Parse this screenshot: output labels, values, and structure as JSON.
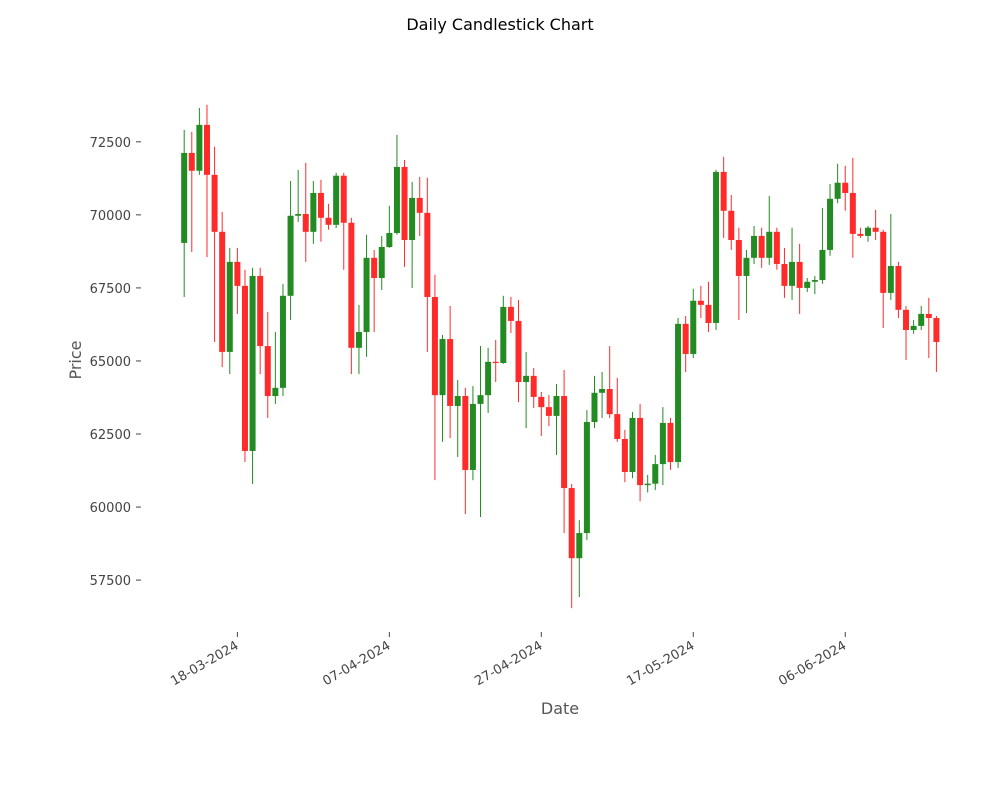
{
  "chart_data": {
    "type": "candlestick",
    "title": "Daily Candlestick Chart",
    "x_label": "Date",
    "y_label": "Price",
    "x": [
      "11-03-2024",
      "12-03-2024",
      "13-03-2024",
      "14-03-2024",
      "15-03-2024",
      "16-03-2024",
      "17-03-2024",
      "18-03-2024",
      "19-03-2024",
      "20-03-2024",
      "21-03-2024",
      "22-03-2024",
      "23-03-2024",
      "24-03-2024",
      "25-03-2024",
      "26-03-2024",
      "27-03-2024",
      "28-03-2024",
      "29-03-2024",
      "30-03-2024",
      "31-03-2024",
      "01-04-2024",
      "02-04-2024",
      "03-04-2024",
      "04-04-2024",
      "05-04-2024",
      "06-04-2024",
      "07-04-2024",
      "08-04-2024",
      "09-04-2024",
      "10-04-2024",
      "11-04-2024",
      "12-04-2024",
      "13-04-2024",
      "14-04-2024",
      "15-04-2024",
      "16-04-2024",
      "17-04-2024",
      "18-04-2024",
      "19-04-2024",
      "20-04-2024",
      "21-04-2024",
      "22-04-2024",
      "23-04-2024",
      "24-04-2024",
      "25-04-2024",
      "26-04-2024",
      "27-04-2024",
      "28-04-2024",
      "29-04-2024",
      "30-04-2024",
      "01-05-2024",
      "02-05-2024",
      "03-05-2024",
      "04-05-2024",
      "05-05-2024",
      "06-05-2024",
      "07-05-2024",
      "08-05-2024",
      "09-05-2024",
      "10-05-2024",
      "11-05-2024",
      "12-05-2024",
      "13-05-2024",
      "14-05-2024",
      "15-05-2024",
      "16-05-2024",
      "17-05-2024",
      "18-05-2024",
      "19-05-2024",
      "20-05-2024",
      "21-05-2024",
      "22-05-2024",
      "23-05-2024",
      "24-05-2024",
      "25-05-2024",
      "26-05-2024",
      "27-05-2024",
      "28-05-2024",
      "29-05-2024",
      "30-05-2024",
      "31-05-2024",
      "01-06-2024",
      "02-06-2024",
      "03-06-2024",
      "04-06-2024",
      "05-06-2024",
      "06-06-2024",
      "07-06-2024",
      "08-06-2024",
      "09-06-2024",
      "10-06-2024",
      "11-06-2024",
      "12-06-2024",
      "13-06-2024",
      "14-06-2024",
      "15-06-2024",
      "16-06-2024",
      "17-06-2024",
      "18-06-2024"
    ],
    "open": [
      69040,
      72120,
      71510,
      73080,
      71370,
      69420,
      65310,
      68390,
      67570,
      61920,
      67910,
      65510,
      63800,
      64080,
      67230,
      69970,
      70030,
      69420,
      70750,
      69900,
      69660,
      71340,
      69730,
      65450,
      65990,
      68530,
      67840,
      68900,
      69380,
      71640,
      69140,
      70580,
      70070,
      67190,
      63830,
      65750,
      63460,
      63800,
      61270,
      63530,
      63830,
      64970,
      64930,
      66850,
      66370,
      64280,
      64490,
      63770,
      63420,
      63120,
      63800,
      60650,
      58250,
      59110,
      62910,
      63910,
      64040,
      63180,
      62330,
      61200,
      63050,
      60750,
      60800,
      61470,
      62880,
      61540,
      66270,
      65240,
      67060,
      66920,
      66300,
      71470,
      70140,
      69140,
      67910,
      68530,
      69280,
      68530,
      69420,
      68320,
      67570,
      68390,
      67500,
      67710,
      67770,
      68800,
      70550,
      71100,
      70750,
      69350,
      69280,
      69560,
      69420,
      67330,
      68250,
      66750,
      66060,
      66200,
      66610,
      66470
    ],
    "high": [
      72910,
      72840,
      73660,
      73770,
      72330,
      70100,
      68870,
      68870,
      68120,
      68190,
      68190,
      66680,
      65990,
      67640,
      71160,
      71540,
      71780,
      71160,
      71200,
      70380,
      71440,
      71440,
      69900,
      66920,
      69320,
      68800,
      69280,
      70310,
      72740,
      71880,
      71130,
      71300,
      71270,
      67950,
      65890,
      66880,
      64350,
      64080,
      64140,
      65510,
      65450,
      65720,
      67230,
      67190,
      67090,
      65310,
      64760,
      63940,
      63830,
      64210,
      64690,
      60790,
      59550,
      63320,
      64490,
      64620,
      65510,
      64420,
      62640,
      63250,
      63530,
      61100,
      61780,
      63420,
      63050,
      66470,
      66540,
      67470,
      67570,
      67710,
      71540,
      71990,
      70680,
      69560,
      68800,
      69620,
      69560,
      70650,
      69560,
      68870,
      69560,
      69010,
      67840,
      67910,
      70240,
      71060,
      71750,
      71680,
      71950,
      69560,
      69620,
      70170,
      69490,
      70030,
      68390,
      66880,
      66400,
      66880,
      67160,
      66540
    ],
    "low": [
      67190,
      68730,
      71370,
      68560,
      65650,
      64790,
      64550,
      66610,
      61540,
      60790,
      64550,
      63050,
      63530,
      63800,
      66400,
      69760,
      68390,
      69010,
      69080,
      69490,
      69550,
      68120,
      64550,
      64550,
      65140,
      65990,
      67430,
      68870,
      69320,
      68220,
      67500,
      69280,
      65310,
      60920,
      62230,
      62360,
      61710,
      59760,
      60920,
      59660,
      63220,
      64280,
      64900,
      65960,
      63590,
      62700,
      63390,
      62430,
      62770,
      61780,
      59110,
      56540,
      56920,
      58870,
      62700,
      63050,
      63050,
      62230,
      60850,
      60990,
      60200,
      60500,
      60580,
      60750,
      61270,
      61340,
      64620,
      65100,
      66470,
      65990,
      66060,
      69210,
      68800,
      66400,
      66640,
      68320,
      68190,
      68290,
      68120,
      67160,
      67090,
      66610,
      67360,
      67290,
      67640,
      68600,
      70400,
      70140,
      68530,
      69210,
      69080,
      69140,
      66130,
      67090,
      66470,
      65030,
      65930,
      66060,
      65100,
      64620
    ],
    "close": [
      72120,
      71510,
      73080,
      71370,
      69420,
      65310,
      68390,
      67570,
      61920,
      67910,
      65510,
      63800,
      64080,
      67230,
      69970,
      70030,
      69420,
      70750,
      69900,
      69660,
      71340,
      69730,
      65450,
      65990,
      68530,
      67840,
      68900,
      69380,
      71640,
      69140,
      70580,
      70070,
      67190,
      63830,
      65750,
      63460,
      63800,
      61270,
      63530,
      63830,
      64970,
      64930,
      66850,
      66370,
      64280,
      64490,
      63770,
      63420,
      63120,
      63800,
      60650,
      58250,
      59110,
      62910,
      63910,
      64040,
      63180,
      62330,
      61200,
      63050,
      60750,
      60800,
      61470,
      62880,
      61540,
      66270,
      65240,
      67060,
      66920,
      66300,
      71470,
      70140,
      69140,
      67910,
      68530,
      69280,
      68530,
      69420,
      68320,
      67570,
      68390,
      67500,
      67710,
      67770,
      68800,
      70550,
      71100,
      70750,
      69350,
      69280,
      69560,
      69420,
      67330,
      68250,
      66750,
      66060,
      66200,
      66610,
      66470,
      65650
    ],
    "up_color": "#228b22",
    "down_color": "#ff2b2b",
    "xlim": [
      "04-03-2024",
      "24-06-2024"
    ],
    "xticks": [
      "18-03-2024",
      "07-04-2024",
      "27-04-2024",
      "17-05-2024",
      "06-06-2024"
    ],
    "ylim": [
      56100,
      74000
    ],
    "yticks": [
      57500,
      60000,
      62500,
      65000,
      67500,
      70000,
      72500
    ]
  }
}
